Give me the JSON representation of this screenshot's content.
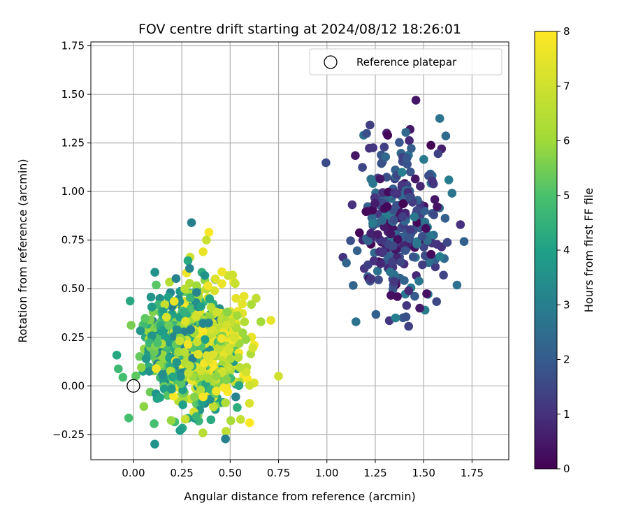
{
  "chart_data": {
    "type": "scatter",
    "title": "FOV centre drift starting at 2024/08/12 18:26:01",
    "xlabel": "Angular distance from reference (arcmin)",
    "ylabel": "Rotation from reference (arcmin)",
    "xlim": [
      -0.22,
      1.94
    ],
    "ylim": [
      -0.38,
      1.77
    ],
    "xticks": [
      0.0,
      0.25,
      0.5,
      0.75,
      1.0,
      1.25,
      1.5,
      1.75
    ],
    "xtick_labels": [
      "0.00",
      "0.25",
      "0.50",
      "0.75",
      "1.00",
      "1.25",
      "1.50",
      "1.75"
    ],
    "yticks": [
      -0.25,
      0.0,
      0.25,
      0.5,
      0.75,
      1.0,
      1.25,
      1.5,
      1.75
    ],
    "ytick_labels": [
      "−0.25",
      "0.00",
      "0.25",
      "0.50",
      "0.75",
      "1.00",
      "1.25",
      "1.50",
      "1.75"
    ],
    "grid": true,
    "colormap": "viridis",
    "colorbar": {
      "label": "Hours from first FF file",
      "range": [
        0,
        8
      ],
      "ticks": [
        0,
        1,
        2,
        3,
        4,
        5,
        6,
        7,
        8
      ],
      "tick_labels": [
        "0",
        "1",
        "2",
        "3",
        "4",
        "5",
        "6",
        "7",
        "8"
      ]
    },
    "legend": {
      "placement": "upper right",
      "entries": [
        {
          "label": "Reference platepar",
          "marker": "open-circle"
        }
      ]
    },
    "reference_point": {
      "x": 0.0,
      "y": 0.0
    },
    "clusters": [
      {
        "hours_range": [
          0.0,
          3.0
        ],
        "x_mean": 1.38,
        "x_sd": 0.11,
        "y_mean": 0.82,
        "y_sd": 0.21,
        "n": 300
      },
      {
        "hours_range": [
          3.0,
          6.0
        ],
        "x_mean": 0.27,
        "x_sd": 0.13,
        "y_mean": 0.2,
        "y_sd": 0.16,
        "n": 450
      },
      {
        "hours_range": [
          6.0,
          8.0
        ],
        "x_mean": 0.38,
        "x_sd": 0.11,
        "y_mean": 0.22,
        "y_sd": 0.15,
        "n": 400
      }
    ],
    "notable_points": [
      {
        "x": 1.46,
        "y": 1.47,
        "hours": 0.4
      },
      {
        "x": 1.43,
        "y": 1.32,
        "hours": 0.5
      },
      {
        "x": 1.19,
        "y": 1.29,
        "hours": 2.5
      },
      {
        "x": 1.63,
        "y": 1.06,
        "hours": 2.9
      },
      {
        "x": 1.69,
        "y": 0.83,
        "hours": 1.0
      },
      {
        "x": 1.15,
        "y": 0.33,
        "hours": 2.6
      },
      {
        "x": 1.48,
        "y": 0.4,
        "hours": 0.5
      },
      {
        "x": 0.3,
        "y": 0.84,
        "hours": 3.0
      },
      {
        "x": 0.39,
        "y": 0.79,
        "hours": 7.9
      },
      {
        "x": 0.75,
        "y": 0.05,
        "hours": 7.0
      },
      {
        "x": 0.11,
        "y": -0.3,
        "hours": 3.6
      },
      {
        "x": 0.36,
        "y": 0.69,
        "hours": 7.6
      },
      {
        "x": 0.6,
        "y": -0.09,
        "hours": 7.2
      }
    ]
  }
}
